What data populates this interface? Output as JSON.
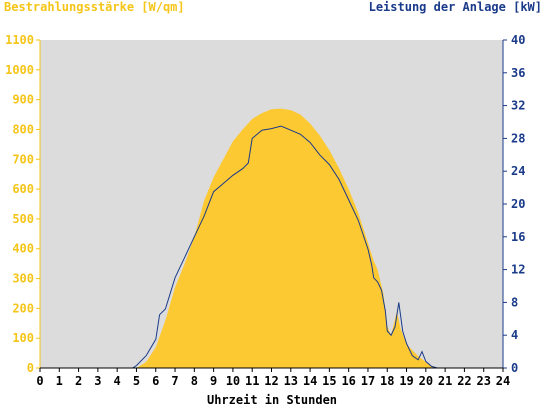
{
  "header": {
    "left_axis_label": "Bestrahlungsstärke [W/qm]",
    "right_axis_label": "Leistung der Anlage [kW]"
  },
  "chart_data": {
    "type": "area",
    "xlabel": "Uhrzeit in Stunden",
    "ylabel": "Bestrahlungsstärke [W/qm]",
    "y2label": "Leistung der Anlage [kW]",
    "xlim": [
      0,
      24
    ],
    "ylim": [
      0,
      1100
    ],
    "y2lim": [
      0,
      40
    ],
    "x_ticks": [
      "0",
      "1",
      "2",
      "3",
      "4",
      "5",
      "6",
      "7",
      "8",
      "9",
      "10",
      "11",
      "12",
      "13",
      "14",
      "15",
      "16",
      "17",
      "18",
      "19",
      "20",
      "21",
      "22",
      "23",
      "24"
    ],
    "y_ticks": [
      "0",
      "100",
      "200",
      "300",
      "400",
      "500",
      "600",
      "700",
      "800",
      "900",
      "1000",
      "1100"
    ],
    "y2_ticks": [
      "0",
      "4",
      "8",
      "12",
      "16",
      "20",
      "24",
      "28",
      "32",
      "36",
      "40"
    ],
    "grid": false,
    "colors": {
      "irradiance_fill": "#fdc933",
      "power_line": "#1a3a8a",
      "plot_background": "#dcdcdc",
      "left_axis_text": "#f5c518",
      "right_axis_text": "#1a3a8a"
    },
    "series": [
      {
        "axis": "left",
        "style": "area",
        "x": [
          0,
          5.0,
          5.5,
          6.0,
          6.5,
          7.0,
          7.5,
          8.0,
          8.5,
          9.0,
          9.5,
          10.0,
          10.5,
          11.0,
          11.5,
          12.0,
          12.5,
          13.0,
          13.5,
          14.0,
          14.5,
          15.0,
          15.5,
          16.0,
          16.5,
          17.0,
          17.3,
          17.5,
          17.8,
          18.0,
          18.2,
          18.5,
          18.7,
          19.0,
          19.3,
          19.6,
          20.0,
          20.3,
          20.6,
          24
        ],
        "values": [
          0,
          0,
          20,
          70,
          160,
          270,
          350,
          440,
          560,
          640,
          700,
          760,
          800,
          835,
          855,
          868,
          870,
          865,
          850,
          820,
          780,
          730,
          670,
          600,
          520,
          420,
          360,
          330,
          250,
          140,
          110,
          190,
          130,
          80,
          60,
          40,
          20,
          5,
          0,
          0
        ]
      },
      {
        "axis": "right",
        "style": "line",
        "x": [
          0,
          4.8,
          5.0,
          5.5,
          6.0,
          6.2,
          6.5,
          7.0,
          7.5,
          8.0,
          8.5,
          9.0,
          9.5,
          10.0,
          10.5,
          10.8,
          11.0,
          11.5,
          12.0,
          12.5,
          13.0,
          13.5,
          14.0,
          14.5,
          15.0,
          15.5,
          16.0,
          16.5,
          17.0,
          17.2,
          17.3,
          17.5,
          17.7,
          17.9,
          18.0,
          18.2,
          18.4,
          18.6,
          18.8,
          19.0,
          19.3,
          19.6,
          19.8,
          20.0,
          20.3,
          20.6,
          24
        ],
        "values": [
          0,
          0,
          0.3,
          1.5,
          3.5,
          6.5,
          7.2,
          11.0,
          13.5,
          16.0,
          18.5,
          21.5,
          22.5,
          23.5,
          24.3,
          25.0,
          28.0,
          29.0,
          29.2,
          29.5,
          29.0,
          28.5,
          27.5,
          26.0,
          24.8,
          23.0,
          20.5,
          18.0,
          14.5,
          12.5,
          11.0,
          10.5,
          9.5,
          7.0,
          4.5,
          4.0,
          5.0,
          8.0,
          4.5,
          3.0,
          1.5,
          1.0,
          2.0,
          0.8,
          0.2,
          0,
          0
        ]
      }
    ]
  }
}
